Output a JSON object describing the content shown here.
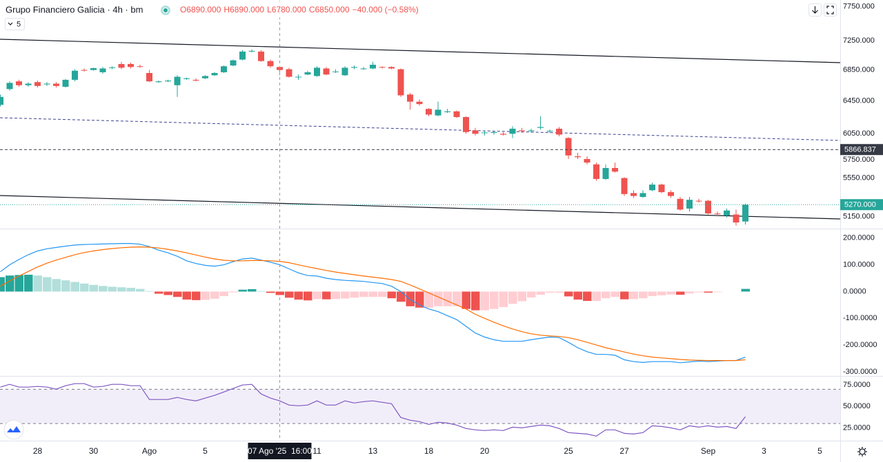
{
  "header": {
    "title": "Grupo Financiero Galicia · 4h · bm",
    "ohlc": [
      "O6890.000",
      "H6890.000",
      "L6780.000",
      "C6850.000"
    ],
    "change": "−40.000 (−0.58%)",
    "interval_count": 5
  },
  "chart_data": [
    {
      "type": "candlestick",
      "log_scale": true,
      "grid": false,
      "ylim": [
        5030,
        7850
      ],
      "yticks": [
        {
          "value": 7750,
          "label": "7750.000"
        },
        {
          "value": 7250,
          "label": "7250.000"
        },
        {
          "value": 6850,
          "label": "6850.000"
        },
        {
          "value": 6450,
          "label": "6450.000"
        },
        {
          "value": 6050,
          "label": "6050.000"
        },
        {
          "value": 5750,
          "label": "5750.000"
        },
        {
          "value": 5550,
          "label": "5550.000"
        },
        {
          "value": 5150,
          "label": "5150.000"
        }
      ],
      "up_color": "#26a69a",
      "down_color": "#ef5350",
      "open": [
        6400,
        6600,
        6700,
        6650,
        6690,
        6660,
        6670,
        6630,
        6720,
        6850,
        6850,
        6820,
        6880,
        6930,
        6930,
        6900,
        6810,
        6690,
        6700,
        6650,
        6730,
        6720,
        6740,
        6780,
        6820,
        6910,
        6990,
        7100,
        7100,
        6970,
        6890,
        6860,
        6760,
        6790,
        6770,
        6870,
        6830,
        6780,
        6880,
        6870,
        6870,
        6890,
        6890,
        6860,
        6530,
        6440,
        6350,
        6270,
        6310,
        6320,
        6250,
        6090,
        6060,
        6060,
        6050,
        6050,
        6090,
        6080,
        6120,
        6080,
        6110,
        6000,
        5790,
        5760,
        5700,
        5540,
        5660,
        5550,
        5390,
        5350,
        5420,
        5480,
        5400,
        5330,
        5230,
        5310,
        5310,
        5180,
        5160,
        5170,
        5100
      ],
      "high": [
        6530,
        6700,
        6720,
        6690,
        6710,
        6690,
        6690,
        6730,
        6860,
        6870,
        6880,
        6890,
        6900,
        6960,
        6950,
        6920,
        6850,
        6710,
        6720,
        6780,
        6750,
        6740,
        6780,
        6820,
        6910,
        6990,
        7120,
        7130,
        7120,
        6990,
        6890,
        6880,
        6790,
        6840,
        6900,
        6890,
        6860,
        6900,
        6910,
        6890,
        6960,
        6900,
        6900,
        6870,
        6550,
        6470,
        6360,
        6440,
        6350,
        6330,
        6260,
        6120,
        6090,
        6080,
        6070,
        6140,
        6120,
        6110,
        6260,
        6100,
        6130,
        6010,
        5830,
        5790,
        5720,
        5700,
        5720,
        5560,
        5420,
        5420,
        5500,
        5490,
        5420,
        5350,
        5350,
        5330,
        5320,
        5200,
        5230,
        5220,
        5280
      ],
      "low": [
        6380,
        6580,
        6630,
        6630,
        6620,
        6640,
        6620,
        6620,
        6700,
        6830,
        6840,
        6800,
        6860,
        6860,
        6870,
        6880,
        6690,
        6680,
        6690,
        6500,
        6720,
        6700,
        6730,
        6770,
        6810,
        6900,
        6980,
        7090,
        6960,
        6880,
        6780,
        6750,
        6720,
        6780,
        6760,
        6780,
        6810,
        6770,
        6860,
        6850,
        6860,
        6870,
        6860,
        6500,
        6340,
        6390,
        6260,
        6260,
        6300,
        6240,
        6050,
        6030,
        6030,
        6040,
        6030,
        6000,
        6060,
        6060,
        6100,
        6060,
        6020,
        5760,
        5760,
        5700,
        5520,
        5530,
        5610,
        5360,
        5340,
        5340,
        5410,
        5390,
        5340,
        5210,
        5200,
        5290,
        5170,
        5150,
        5140,
        5060,
        5070
      ],
      "close": [
        6500,
        6680,
        6650,
        6670,
        6640,
        6670,
        6640,
        6720,
        6840,
        6845,
        6875,
        6870,
        6885,
        6880,
        6890,
        6895,
        6700,
        6700,
        6710,
        6760,
        6740,
        6710,
        6770,
        6810,
        6900,
        6980,
        7100,
        7110,
        6970,
        6900,
        6850,
        6760,
        6760,
        6820,
        6880,
        6790,
        6830,
        6880,
        6890,
        6870,
        6920,
        6885,
        6870,
        6520,
        6440,
        6410,
        6280,
        6340,
        6320,
        6250,
        6070,
        6050,
        6065,
        6070,
        6040,
        6110,
        6080,
        6090,
        6130,
        6085,
        6040,
        5800,
        5780,
        5720,
        5540,
        5660,
        5620,
        5380,
        5360,
        5390,
        5480,
        5400,
        5360,
        5220,
        5320,
        5305,
        5180,
        5175,
        5210,
        5090,
        5270
      ],
      "price_lines": [
        {
          "value": 5866.837,
          "color": "#363a45",
          "style": "dashed"
        },
        {
          "value": 5270,
          "label": "5270.000",
          "color": "#26a69a",
          "style": "dotted"
        }
      ],
      "xticks": [
        {
          "value": 4,
          "label": "28"
        },
        {
          "value": 10,
          "label": "30"
        },
        {
          "value": 16,
          "label": "Ago"
        },
        {
          "value": 22,
          "label": "5"
        },
        {
          "value": 34,
          "label": "11"
        },
        {
          "value": 40,
          "label": "13"
        },
        {
          "value": 46,
          "label": "18"
        },
        {
          "value": 52,
          "label": "20"
        },
        {
          "value": 61,
          "label": "25"
        },
        {
          "value": 67,
          "label": "27"
        },
        {
          "value": 76,
          "label": "Sep"
        },
        {
          "value": 82,
          "label": "3"
        },
        {
          "value": 88,
          "label": "5"
        }
      ],
      "crosshair": {
        "value": 30,
        "label": "07 Ago '25  16:00"
      }
    },
    {
      "type": "macd",
      "grid": false,
      "ylim": [
        -313,
        233
      ],
      "yticks": [
        {
          "value": 200,
          "label": "200.0000"
        },
        {
          "value": 100,
          "label": "100.0000"
        },
        {
          "value": 0,
          "label": "0.0000"
        },
        {
          "value": -100,
          "label": "-100.0000"
        },
        {
          "value": -200,
          "label": "-200.0000"
        },
        {
          "value": -300,
          "label": "-300.0000"
        }
      ],
      "histogram_colors": [
        "#26a69a",
        "#b2dfdb",
        "#ef5350",
        "#ffcdd2"
      ],
      "histogram": [
        54,
        60,
        62,
        63,
        60,
        54,
        47,
        42,
        36,
        30,
        25,
        21,
        18,
        16,
        14,
        10,
        2,
        -8,
        -13,
        -20,
        -30,
        -32,
        -31,
        -27,
        -17,
        -3,
        7,
        9,
        2,
        -5,
        -13,
        -23,
        -30,
        -33,
        -28,
        -29,
        -28,
        -26,
        -23,
        -20,
        -20,
        -20,
        -25,
        -38,
        -55,
        -60,
        -60,
        -55,
        -55,
        -55,
        -65,
        -70,
        -70,
        -65,
        -58,
        -46,
        -36,
        -22,
        -12,
        -4,
        -4,
        -18,
        -30,
        -35,
        -35,
        -25,
        -20,
        -29,
        -28,
        -25,
        -17,
        -14,
        -11,
        -12,
        -7,
        -3,
        -4,
        -2,
        0,
        0,
        10
      ],
      "series": [
        {
          "color": "#2196f3",
          "values": [
            74,
            100,
            120,
            138,
            152,
            160,
            165,
            170,
            174,
            176,
            177,
            178,
            179,
            180,
            180,
            177,
            168,
            155,
            145,
            132,
            115,
            105,
            98,
            95,
            100,
            112,
            122,
            125,
            118,
            110,
            100,
            85,
            70,
            60,
            58,
            50,
            45,
            42,
            40,
            38,
            34,
            30,
            20,
            0,
            -30,
            -50,
            -65,
            -75,
            -90,
            -105,
            -130,
            -155,
            -170,
            -180,
            -186,
            -186,
            -186,
            -180,
            -175,
            -170,
            -172,
            -190,
            -210,
            -225,
            -235,
            -235,
            -238,
            -255,
            -262,
            -265,
            -262,
            -262,
            -262,
            -266,
            -263,
            -260,
            -262,
            -260,
            -258,
            -258,
            -245
          ]
        },
        {
          "color": "#ff6d00",
          "values": [
            20,
            40,
            58,
            75,
            92,
            106,
            118,
            128,
            138,
            146,
            152,
            157,
            161,
            164,
            166,
            167,
            166,
            163,
            158,
            152,
            145,
            137,
            129,
            122,
            117,
            115,
            115,
            116,
            116,
            115,
            113,
            108,
            100,
            93,
            86,
            79,
            73,
            68,
            63,
            58,
            54,
            50,
            45,
            38,
            25,
            10,
            -5,
            -20,
            -35,
            -50,
            -65,
            -85,
            -100,
            -115,
            -128,
            -140,
            -150,
            -158,
            -163,
            -166,
            -168,
            -172,
            -180,
            -190,
            -200,
            -210,
            -218,
            -226,
            -234,
            -240,
            -245,
            -248,
            -251,
            -254,
            -256,
            -257,
            -258,
            -258,
            -258,
            -258,
            -255
          ]
        }
      ]
    },
    {
      "type": "rsi",
      "grid": false,
      "ylim": [
        10,
        84
      ],
      "yticks": [
        {
          "value": 75,
          "label": "75.0000"
        },
        {
          "value": 50,
          "label": "50.0000"
        },
        {
          "value": 25,
          "label": "25.0000"
        }
      ],
      "bands": [
        70,
        30
      ],
      "band_color": "#7e57c2",
      "series": [
        {
          "color": "#7e57c2",
          "values": [
            72.6,
            75.8,
            72.6,
            72.6,
            73.4,
            72.6,
            70.2,
            74.2,
            76.6,
            76.6,
            72.6,
            73.4,
            75.8,
            75.8,
            74.2,
            74.2,
            58.1,
            58.1,
            58.1,
            60.5,
            58.1,
            56.5,
            59.7,
            62.9,
            66.9,
            71,
            75,
            75.8,
            64.5,
            59.7,
            56.5,
            51.6,
            50.8,
            51.6,
            56.5,
            51.6,
            51.6,
            56.5,
            54,
            55.6,
            56.5,
            54.8,
            53.2,
            37.1,
            33.9,
            32.3,
            29,
            31.5,
            30.6,
            28.2,
            24.2,
            22.6,
            21.8,
            22.6,
            21.8,
            25.8,
            25,
            26.6,
            28.2,
            27.4,
            24.2,
            19.4,
            18.5,
            17.7,
            15.3,
            22.6,
            22.6,
            18.5,
            17.7,
            19.4,
            27.4,
            26.6,
            25,
            22.6,
            27.4,
            25.8,
            27.4,
            25.8,
            26.6,
            24.2,
            37.9
          ]
        }
      ]
    }
  ]
}
